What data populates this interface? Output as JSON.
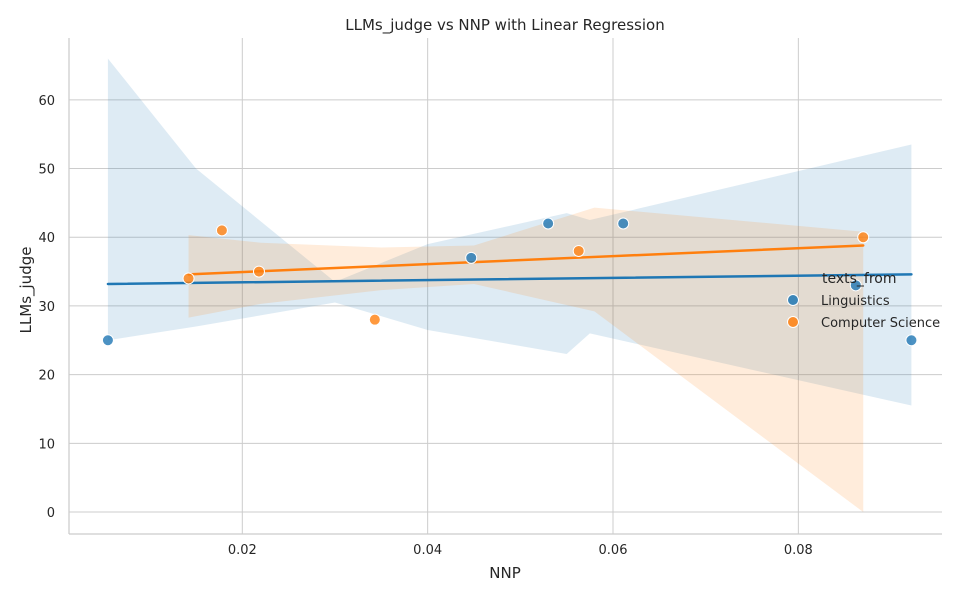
{
  "chart_data": {
    "type": "scatter",
    "title": "LLMs_judge vs NNP with Linear Regression",
    "xlabel": "NNP",
    "ylabel": "LLMs_judge",
    "xlim": [
      0.0013,
      0.0955
    ],
    "ylim": [
      -3.2,
      69
    ],
    "x_ticks": [
      0.02,
      0.04,
      0.06,
      0.08
    ],
    "x_tick_labels": [
      "0.02",
      "0.04",
      "0.06",
      "0.08"
    ],
    "y_ticks": [
      0,
      10,
      20,
      30,
      40,
      50,
      60
    ],
    "y_tick_labels": [
      "0",
      "10",
      "20",
      "30",
      "40",
      "50",
      "60"
    ],
    "grid": true,
    "legend": {
      "title": "texts_from",
      "placement": "right",
      "entries": [
        "Linguistics",
        "Computer Science"
      ]
    },
    "series": [
      {
        "name": "Linguistics",
        "color": "#1f77b4",
        "points": [
          {
            "x": 0.0055,
            "y": 25
          },
          {
            "x": 0.0447,
            "y": 37
          },
          {
            "x": 0.053,
            "y": 42
          },
          {
            "x": 0.0611,
            "y": 42
          },
          {
            "x": 0.0862,
            "y": 33
          },
          {
            "x": 0.0922,
            "y": 25
          }
        ],
        "regression": {
          "x_start": 0.0055,
          "y_start": 33.2,
          "x_end": 0.0922,
          "y_end": 34.6
        },
        "ci_band": [
          {
            "x": 0.0055,
            "lo": 25.0,
            "hi": 66.0
          },
          {
            "x": 0.015,
            "lo": 27.0,
            "hi": 50.0
          },
          {
            "x": 0.03,
            "lo": 30.5,
            "hi": 33.5
          },
          {
            "x": 0.04,
            "lo": 26.5,
            "hi": 39.0
          },
          {
            "x": 0.055,
            "lo": 23.0,
            "hi": 43.5
          },
          {
            "x": 0.0575,
            "lo": 26.0,
            "hi": 42.5
          },
          {
            "x": 0.0922,
            "lo": 15.5,
            "hi": 53.5
          }
        ]
      },
      {
        "name": "Computer Science",
        "color": "#ff7f0e",
        "points": [
          {
            "x": 0.0142,
            "y": 34
          },
          {
            "x": 0.0178,
            "y": 41
          },
          {
            "x": 0.0218,
            "y": 35
          },
          {
            "x": 0.0343,
            "y": 28
          },
          {
            "x": 0.0563,
            "y": 38
          },
          {
            "x": 0.087,
            "y": 40
          }
        ],
        "regression": {
          "x_start": 0.0142,
          "y_start": 34.6,
          "x_end": 0.087,
          "y_end": 38.8
        },
        "ci_band": [
          {
            "x": 0.0142,
            "lo": 28.3,
            "hi": 40.3
          },
          {
            "x": 0.022,
            "lo": 30.3,
            "hi": 39.2
          },
          {
            "x": 0.035,
            "lo": 32.3,
            "hi": 38.5
          },
          {
            "x": 0.045,
            "lo": 33.2,
            "hi": 38.8
          },
          {
            "x": 0.058,
            "lo": 29.2,
            "hi": 44.3
          },
          {
            "x": 0.087,
            "lo": 0.0,
            "hi": 40.8
          }
        ]
      }
    ]
  }
}
